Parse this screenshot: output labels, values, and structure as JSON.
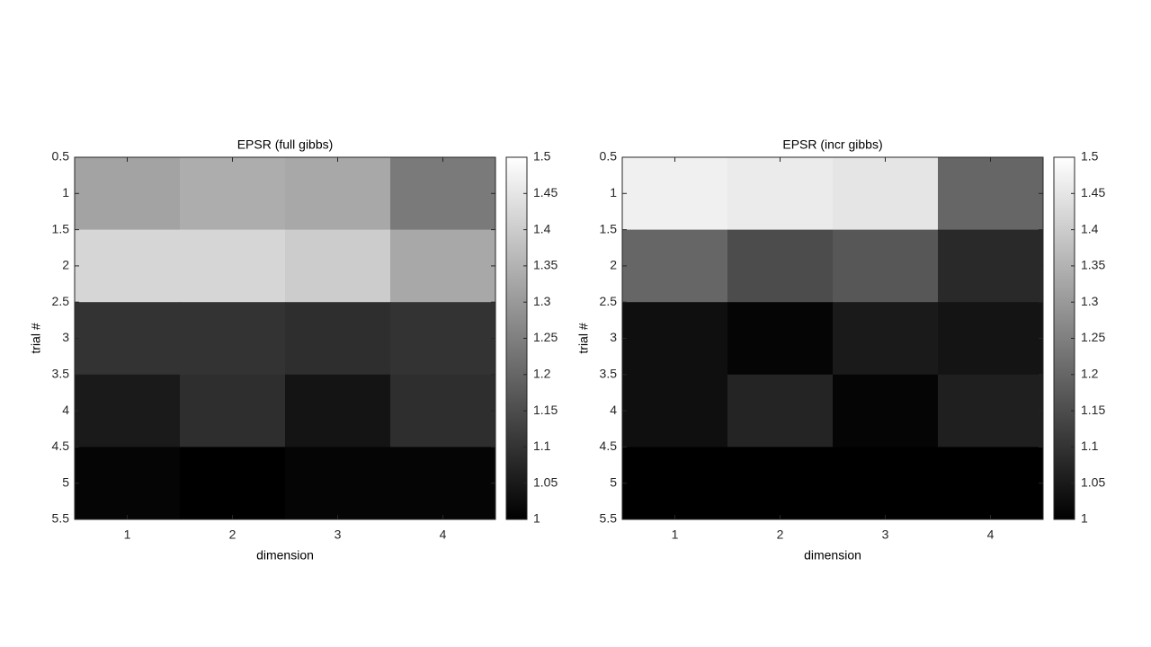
{
  "chart_data": [
    {
      "type": "heatmap",
      "title": "EPSR (full gibbs)",
      "xlabel": "dimension",
      "ylabel": "trial #",
      "x": [
        1,
        2,
        3,
        4
      ],
      "y": [
        1,
        2,
        3,
        4,
        5
      ],
      "values": [
        [
          1.32,
          1.34,
          1.33,
          1.24
        ],
        [
          1.42,
          1.42,
          1.4,
          1.33
        ],
        [
          1.1,
          1.1,
          1.09,
          1.1
        ],
        [
          1.05,
          1.09,
          1.04,
          1.09
        ],
        [
          1.01,
          1.0,
          1.01,
          1.01
        ]
      ],
      "xlim": [
        0.5,
        4.5
      ],
      "xticks": [
        1,
        2,
        3,
        4
      ],
      "ylim": [
        0.5,
        5.5
      ],
      "yticks": [
        0.5,
        1,
        1.5,
        2,
        2.5,
        3,
        3.5,
        4,
        4.5,
        5,
        5.5
      ],
      "y_reversed": true,
      "colormap": "gray",
      "clim": [
        1,
        1.5
      ],
      "cticks": [
        1,
        1.05,
        1.1,
        1.15,
        1.2,
        1.25,
        1.3,
        1.35,
        1.4,
        1.45,
        1.5
      ]
    },
    {
      "type": "heatmap",
      "title": "EPSR (incr gibbs)",
      "xlabel": "dimension",
      "ylabel": "trial #",
      "x": [
        1,
        2,
        3,
        4
      ],
      "y": [
        1,
        2,
        3,
        4,
        5
      ],
      "values": [
        [
          1.47,
          1.46,
          1.45,
          1.2
        ],
        [
          1.2,
          1.15,
          1.17,
          1.08
        ],
        [
          1.03,
          1.01,
          1.05,
          1.04
        ],
        [
          1.03,
          1.07,
          1.01,
          1.06
        ],
        [
          1.0,
          1.0,
          1.0,
          1.0
        ]
      ],
      "xlim": [
        0.5,
        4.5
      ],
      "xticks": [
        1,
        2,
        3,
        4
      ],
      "ylim": [
        0.5,
        5.5
      ],
      "yticks": [
        0.5,
        1,
        1.5,
        2,
        2.5,
        3,
        3.5,
        4,
        4.5,
        5,
        5.5
      ],
      "y_reversed": true,
      "colormap": "gray",
      "clim": [
        1,
        1.5
      ],
      "cticks": [
        1,
        1.05,
        1.1,
        1.15,
        1.2,
        1.25,
        1.3,
        1.35,
        1.4,
        1.45,
        1.5
      ]
    }
  ]
}
